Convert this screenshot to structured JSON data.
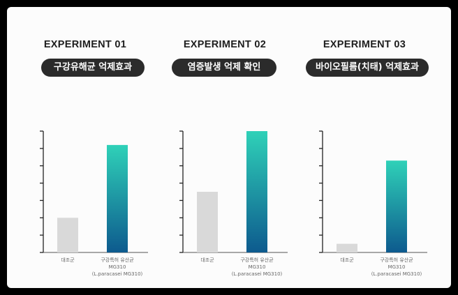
{
  "chart_data": [
    {
      "type": "bar",
      "title": "EXPERIMENT 01",
      "subtitle": "구강유해균 억제효과",
      "categories": [
        "대조군",
        "구강특허 유산균 MG310 (L.paracasei MG310)"
      ],
      "category_lines": [
        [
          "대조군"
        ],
        [
          "구강특허 유산균",
          "MG310",
          "(L.paracasei MG310)"
        ]
      ],
      "values": [
        2.0,
        6.2
      ],
      "ylim": [
        0,
        7
      ],
      "yticks": 7,
      "colors": [
        "#d9d9d9",
        "gradient"
      ]
    },
    {
      "type": "bar",
      "title": "EXPERIMENT 02",
      "subtitle": "염증발생 억제 확인",
      "categories": [
        "대조군",
        "구강특허 유산균 MG310 (L.paracasei MG310)"
      ],
      "category_lines": [
        [
          "대조군"
        ],
        [
          "구강특허 유산균",
          "MG310",
          "(L.paracasei MG310)"
        ]
      ],
      "values": [
        3.5,
        7.0
      ],
      "ylim": [
        0,
        7
      ],
      "yticks": 7,
      "colors": [
        "#d9d9d9",
        "gradient"
      ]
    },
    {
      "type": "bar",
      "title": "EXPERIMENT 03",
      "subtitle": "바이오필름(치태) 억제효과",
      "categories": [
        "대조군",
        "구강특허 유산균 MG310 (L.paracasei MG310)"
      ],
      "category_lines": [
        [
          "대조군"
        ],
        [
          "구강특허 유산균",
          "MG310",
          "(L.paracasei MG310)"
        ]
      ],
      "values": [
        0.5,
        5.3
      ],
      "ylim": [
        0,
        7
      ],
      "yticks": 7,
      "colors": [
        "#d9d9d9",
        "gradient"
      ]
    }
  ],
  "gradient": {
    "top": "#2fd1b8",
    "bottom": "#0d5a8e"
  },
  "axis_color": "#222222"
}
